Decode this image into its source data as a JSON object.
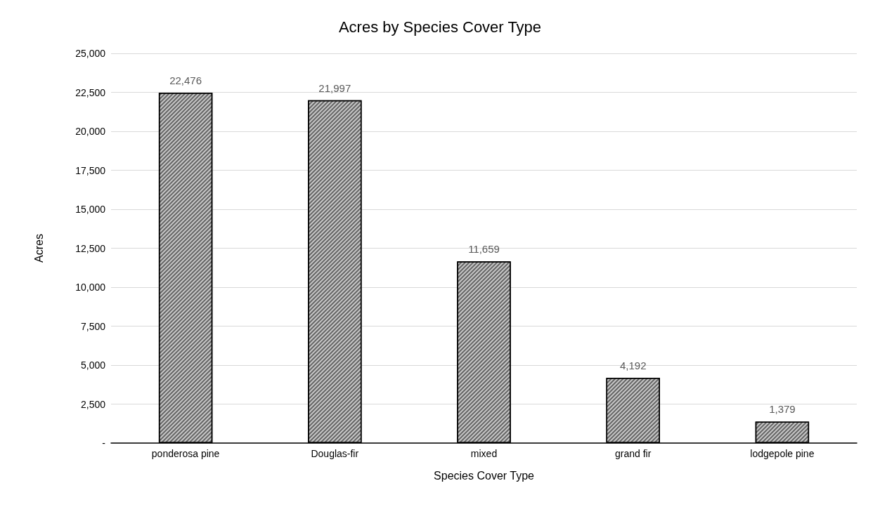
{
  "chart_data": {
    "type": "bar",
    "title": "Acres by Species Cover Type",
    "xlabel": "Species Cover Type",
    "ylabel": "Acres",
    "categories": [
      "ponderosa pine",
      "Douglas-fir",
      "mixed",
      "grand fir",
      "lodgepole pine"
    ],
    "values": [
      22476,
      21997,
      11659,
      4192,
      1379
    ],
    "value_labels": [
      "22,476",
      "21,997",
      "11,659",
      "4,192",
      "1,379"
    ],
    "color": "#c8c8c8",
    "ylim": [
      0,
      25000
    ],
    "yticks": [
      {
        "value": 0,
        "label": "-"
      },
      {
        "value": 2500,
        "label": "2,500"
      },
      {
        "value": 5000,
        "label": "5,000"
      },
      {
        "value": 7500,
        "label": "7,500"
      },
      {
        "value": 10000,
        "label": "10,000"
      },
      {
        "value": 12500,
        "label": "12,500"
      },
      {
        "value": 15000,
        "label": "15,000"
      },
      {
        "value": 17500,
        "label": "17,500"
      },
      {
        "value": 20000,
        "label": "20,000"
      },
      {
        "value": 22500,
        "label": "22,500"
      },
      {
        "value": 25000,
        "label": "25,000"
      }
    ],
    "grid": "y"
  }
}
